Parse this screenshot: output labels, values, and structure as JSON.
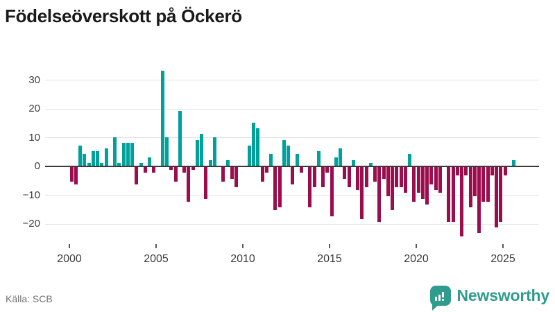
{
  "title": "Födelseöverskott på Öckerö",
  "source_label": "Källa: SCB",
  "logo": {
    "text": "Newsworthy",
    "color": "#2f9c8d"
  },
  "chart_data": {
    "type": "bar",
    "title": "Födelseöverskott på Öckerö",
    "frequency": "quarterly",
    "start_period": "2000-Q1",
    "end_period": "2025-Q3",
    "x_tick_years": [
      2000,
      2005,
      2010,
      2015,
      2020,
      2025
    ],
    "x_axis_labels": [
      "2000",
      "2005",
      "2010",
      "2015",
      "2020",
      "2025"
    ],
    "y_ticks": [
      30,
      20,
      10,
      0,
      -10,
      -20
    ],
    "y_axis_labels": [
      "30",
      "20",
      "10",
      "0",
      "−10",
      "−20"
    ],
    "ylim": [
      -24,
      33
    ],
    "grid": "horizontal",
    "positive_color": "#00a19a",
    "negative_color": "#9c0d4e",
    "values": [
      -5,
      -6,
      7,
      4,
      1,
      5,
      5,
      1,
      6,
      0,
      10,
      1,
      8,
      8,
      8,
      -6,
      1,
      -2,
      3,
      -2,
      0,
      33,
      10,
      -1,
      -5,
      19,
      -2,
      -12,
      -1,
      9,
      11,
      -11,
      2,
      10,
      0,
      -5,
      2,
      -4,
      -7,
      0,
      0,
      7,
      15,
      13,
      -5,
      -2,
      4,
      -15,
      -14,
      9,
      7,
      -6,
      4,
      -2,
      0,
      -14,
      -7,
      5,
      -7,
      -2,
      -17,
      3,
      6,
      -4,
      -7,
      2,
      -8,
      -18,
      -7,
      1,
      -5,
      -19,
      -4,
      -10,
      -15,
      -7,
      -7,
      -9,
      4,
      -12,
      -9,
      -11,
      -13,
      -6,
      -8,
      -9,
      0,
      -19,
      -19,
      -3,
      -24,
      -3,
      -14,
      -10,
      -23,
      -12,
      -12,
      -3,
      -21,
      -19,
      -3,
      0,
      2
    ]
  }
}
